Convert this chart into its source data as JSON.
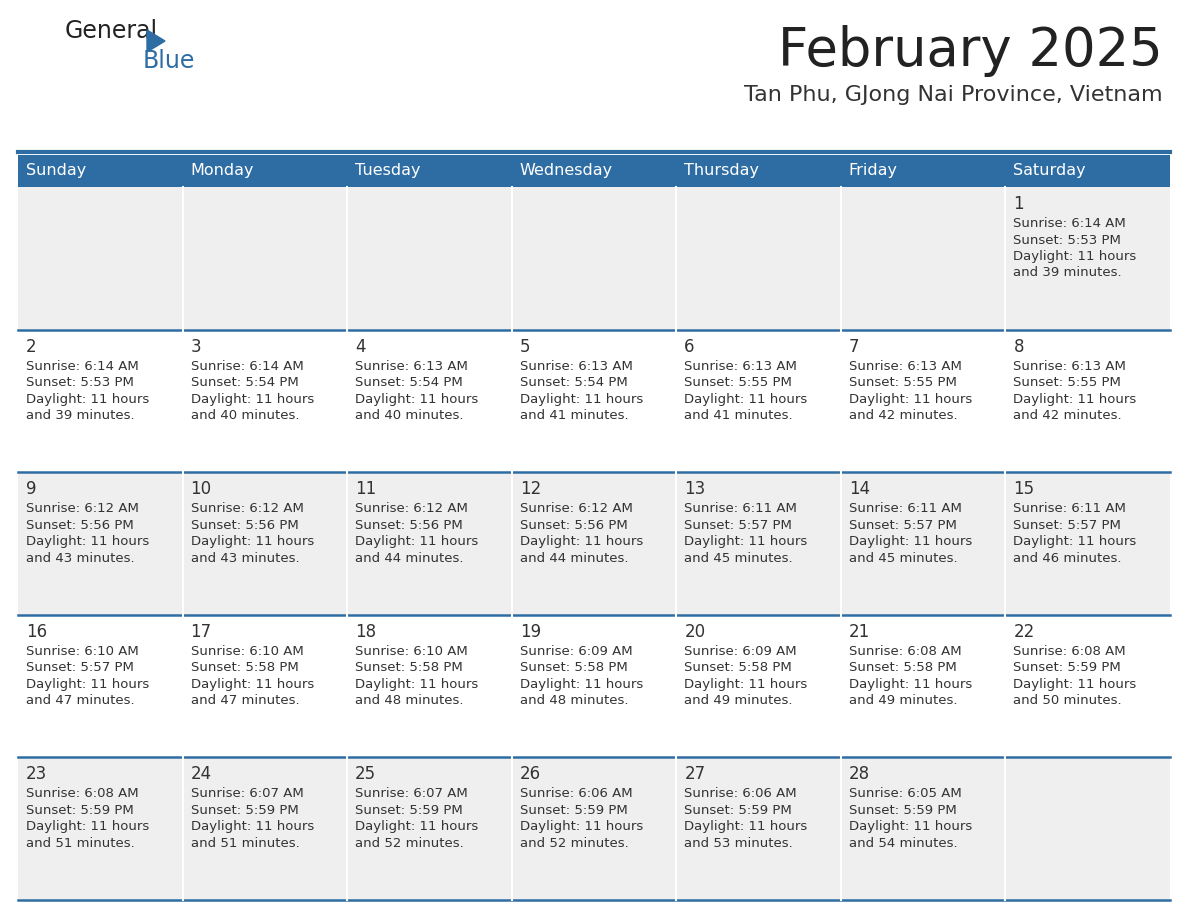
{
  "title": "February 2025",
  "subtitle": "Tan Phu, GJong Nai Province, Vietnam",
  "header_bg": "#2E6DA4",
  "header_text_color": "#FFFFFF",
  "cell_bg_light": "#EFEFEF",
  "cell_bg_white": "#FFFFFF",
  "day_number_color": "#333333",
  "cell_text_color": "#333333",
  "row_separator_color": "#2E6DA4",
  "col_separator_color": "#FFFFFF",
  "logo_general_color": "#222222",
  "logo_blue_color": "#2E6DA4",
  "title_color": "#222222",
  "subtitle_color": "#333333",
  "day_headers": [
    "Sunday",
    "Monday",
    "Tuesday",
    "Wednesday",
    "Thursday",
    "Friday",
    "Saturday"
  ],
  "days": [
    {
      "day": 1,
      "col": 6,
      "row": 0,
      "sunrise": "6:14 AM",
      "sunset": "5:53 PM",
      "daylight": "11 hours and 39 minutes."
    },
    {
      "day": 2,
      "col": 0,
      "row": 1,
      "sunrise": "6:14 AM",
      "sunset": "5:53 PM",
      "daylight": "11 hours and 39 minutes."
    },
    {
      "day": 3,
      "col": 1,
      "row": 1,
      "sunrise": "6:14 AM",
      "sunset": "5:54 PM",
      "daylight": "11 hours and 40 minutes."
    },
    {
      "day": 4,
      "col": 2,
      "row": 1,
      "sunrise": "6:13 AM",
      "sunset": "5:54 PM",
      "daylight": "11 hours and 40 minutes."
    },
    {
      "day": 5,
      "col": 3,
      "row": 1,
      "sunrise": "6:13 AM",
      "sunset": "5:54 PM",
      "daylight": "11 hours and 41 minutes."
    },
    {
      "day": 6,
      "col": 4,
      "row": 1,
      "sunrise": "6:13 AM",
      "sunset": "5:55 PM",
      "daylight": "11 hours and 41 minutes."
    },
    {
      "day": 7,
      "col": 5,
      "row": 1,
      "sunrise": "6:13 AM",
      "sunset": "5:55 PM",
      "daylight": "11 hours and 42 minutes."
    },
    {
      "day": 8,
      "col": 6,
      "row": 1,
      "sunrise": "6:13 AM",
      "sunset": "5:55 PM",
      "daylight": "11 hours and 42 minutes."
    },
    {
      "day": 9,
      "col": 0,
      "row": 2,
      "sunrise": "6:12 AM",
      "sunset": "5:56 PM",
      "daylight": "11 hours and 43 minutes."
    },
    {
      "day": 10,
      "col": 1,
      "row": 2,
      "sunrise": "6:12 AM",
      "sunset": "5:56 PM",
      "daylight": "11 hours and 43 minutes."
    },
    {
      "day": 11,
      "col": 2,
      "row": 2,
      "sunrise": "6:12 AM",
      "sunset": "5:56 PM",
      "daylight": "11 hours and 44 minutes."
    },
    {
      "day": 12,
      "col": 3,
      "row": 2,
      "sunrise": "6:12 AM",
      "sunset": "5:56 PM",
      "daylight": "11 hours and 44 minutes."
    },
    {
      "day": 13,
      "col": 4,
      "row": 2,
      "sunrise": "6:11 AM",
      "sunset": "5:57 PM",
      "daylight": "11 hours and 45 minutes."
    },
    {
      "day": 14,
      "col": 5,
      "row": 2,
      "sunrise": "6:11 AM",
      "sunset": "5:57 PM",
      "daylight": "11 hours and 45 minutes."
    },
    {
      "day": 15,
      "col": 6,
      "row": 2,
      "sunrise": "6:11 AM",
      "sunset": "5:57 PM",
      "daylight": "11 hours and 46 minutes."
    },
    {
      "day": 16,
      "col": 0,
      "row": 3,
      "sunrise": "6:10 AM",
      "sunset": "5:57 PM",
      "daylight": "11 hours and 47 minutes."
    },
    {
      "day": 17,
      "col": 1,
      "row": 3,
      "sunrise": "6:10 AM",
      "sunset": "5:58 PM",
      "daylight": "11 hours and 47 minutes."
    },
    {
      "day": 18,
      "col": 2,
      "row": 3,
      "sunrise": "6:10 AM",
      "sunset": "5:58 PM",
      "daylight": "11 hours and 48 minutes."
    },
    {
      "day": 19,
      "col": 3,
      "row": 3,
      "sunrise": "6:09 AM",
      "sunset": "5:58 PM",
      "daylight": "11 hours and 48 minutes."
    },
    {
      "day": 20,
      "col": 4,
      "row": 3,
      "sunrise": "6:09 AM",
      "sunset": "5:58 PM",
      "daylight": "11 hours and 49 minutes."
    },
    {
      "day": 21,
      "col": 5,
      "row": 3,
      "sunrise": "6:08 AM",
      "sunset": "5:58 PM",
      "daylight": "11 hours and 49 minutes."
    },
    {
      "day": 22,
      "col": 6,
      "row": 3,
      "sunrise": "6:08 AM",
      "sunset": "5:59 PM",
      "daylight": "11 hours and 50 minutes."
    },
    {
      "day": 23,
      "col": 0,
      "row": 4,
      "sunrise": "6:08 AM",
      "sunset": "5:59 PM",
      "daylight": "11 hours and 51 minutes."
    },
    {
      "day": 24,
      "col": 1,
      "row": 4,
      "sunrise": "6:07 AM",
      "sunset": "5:59 PM",
      "daylight": "11 hours and 51 minutes."
    },
    {
      "day": 25,
      "col": 2,
      "row": 4,
      "sunrise": "6:07 AM",
      "sunset": "5:59 PM",
      "daylight": "11 hours and 52 minutes."
    },
    {
      "day": 26,
      "col": 3,
      "row": 4,
      "sunrise": "6:06 AM",
      "sunset": "5:59 PM",
      "daylight": "11 hours and 52 minutes."
    },
    {
      "day": 27,
      "col": 4,
      "row": 4,
      "sunrise": "6:06 AM",
      "sunset": "5:59 PM",
      "daylight": "11 hours and 53 minutes."
    },
    {
      "day": 28,
      "col": 5,
      "row": 4,
      "sunrise": "6:05 AM",
      "sunset": "5:59 PM",
      "daylight": "11 hours and 54 minutes."
    }
  ]
}
